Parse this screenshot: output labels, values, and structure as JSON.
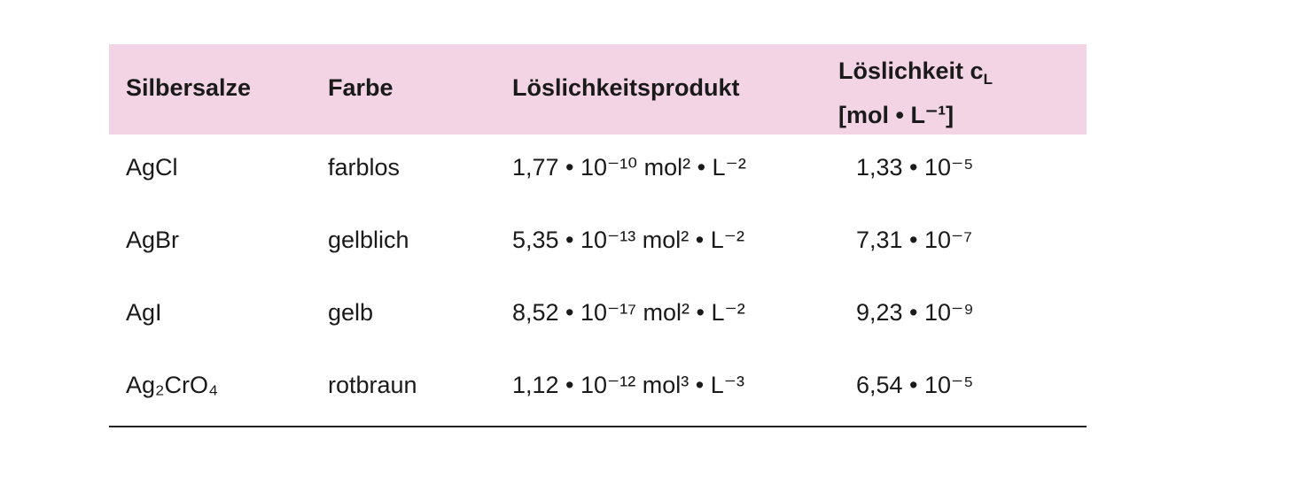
{
  "table": {
    "headers": {
      "salt": "Silbersalze",
      "color": "Farbe",
      "ksp": "Löslichkeitsprodukt",
      "solubility": "Löslichkeit c",
      "solubility_sub": "L",
      "solubility_unit": "[mol • L⁻¹]"
    },
    "rows": [
      {
        "salt": "AgCl",
        "color": "farblos",
        "ksp": "1,77 • 10⁻¹⁰ mol² • L⁻²",
        "solubility": "1,33 • 10⁻⁵"
      },
      {
        "salt": "AgBr",
        "color": "gelblich",
        "ksp": "5,35 • 10⁻¹³ mol² • L⁻²",
        "solubility": "7,31 • 10⁻⁷"
      },
      {
        "salt": "AgI",
        "color": "gelb",
        "ksp": "8,52 • 10⁻¹⁷ mol² • L⁻²",
        "solubility": "9,23 • 10⁻⁹"
      },
      {
        "salt": "Ag₂CrO₄",
        "color": "rotbraun",
        "ksp": "1,12 • 10⁻¹² mol³ • L⁻³",
        "solubility": "6,54 • 10⁻⁵"
      }
    ]
  },
  "colors": {
    "header_bg": "#f3d4e4",
    "text": "#1a1a1a"
  }
}
